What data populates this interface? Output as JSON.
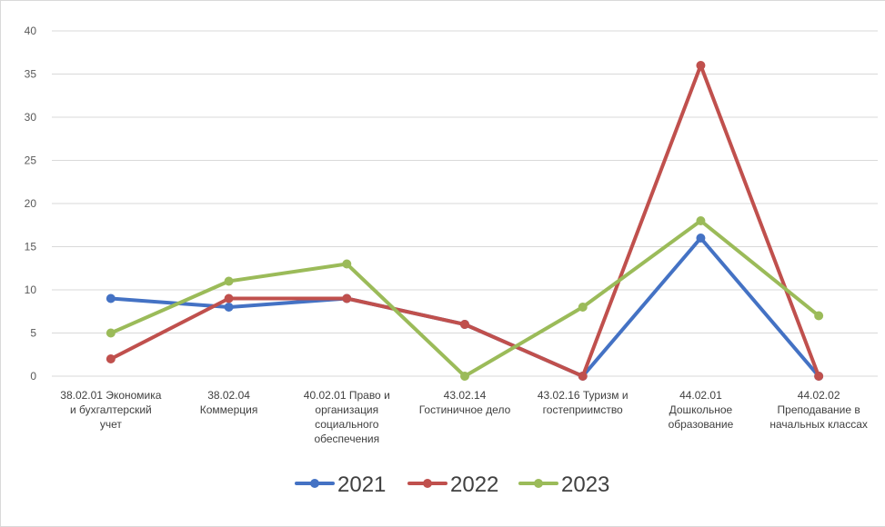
{
  "chart_data": {
    "type": "line",
    "title": "",
    "xlabel": "",
    "ylabel": "",
    "ylim": [
      0,
      40
    ],
    "yticks": [
      0,
      5,
      10,
      15,
      20,
      25,
      30,
      35,
      40
    ],
    "grid": true,
    "legend_position": "bottom",
    "categories": [
      [
        "38.02.01 Экономика",
        "и бухгалтерский",
        "учет"
      ],
      [
        "38.02.04",
        "Коммерция"
      ],
      [
        "40.02.01 Право и",
        "организация",
        "социального",
        "обеспечения"
      ],
      [
        "43.02.14",
        "Гостиничное дело"
      ],
      [
        "43.02.16 Туризм и",
        "гостеприимство"
      ],
      [
        "44.02.01",
        "Дошкольное",
        "образование"
      ],
      [
        "44.02.02",
        "Преподавание в",
        "начальных классах"
      ]
    ],
    "series": [
      {
        "name": "2021",
        "color": "#4472c4",
        "values": [
          9,
          8,
          9,
          6,
          0,
          16,
          0
        ]
      },
      {
        "name": "2022",
        "color": "#c0504d",
        "values": [
          2,
          9,
          9,
          6,
          0,
          36,
          0
        ]
      },
      {
        "name": "2023",
        "color": "#9bbb59",
        "values": [
          5,
          11,
          13,
          0,
          8,
          18,
          7
        ]
      }
    ]
  }
}
